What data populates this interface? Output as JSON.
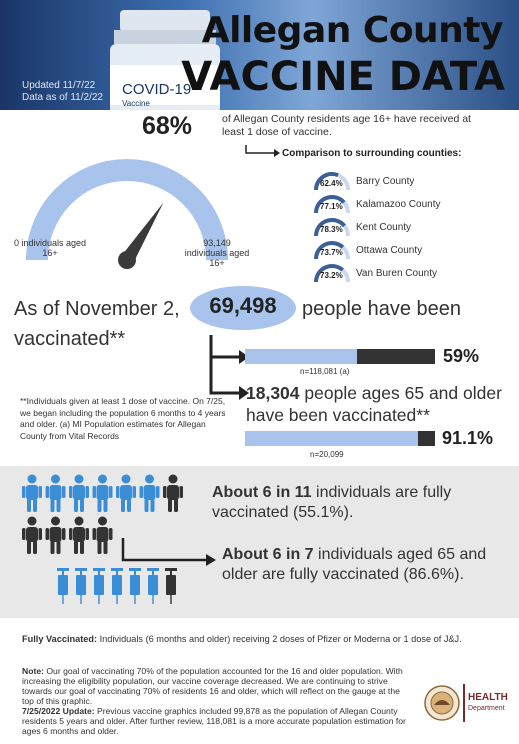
{
  "header": {
    "title_line1": "Allegan County",
    "title_line2": "VACCINE DATA",
    "updated": "Updated 11/7/22",
    "data_as_of": "Data as of 11/2/22",
    "vial_label": "COVID-19",
    "vial_sub": "Vaccine"
  },
  "gauge": {
    "percent": "68%",
    "value": 0.68,
    "description": "of Allegan County residents age 16+ have received at least 1 dose of vaccine.",
    "left_label": "0 individuals aged 16+",
    "right_label": "93,149 individuals aged 16+",
    "colors": {
      "arc": "#a9c4ec",
      "needle": "#333333"
    }
  },
  "comparison": {
    "title": "Comparison to surrounding counties:",
    "counties": [
      {
        "pct": "62.4%",
        "value": 0.624,
        "name": "Barry County"
      },
      {
        "pct": "77.1%",
        "value": 0.771,
        "name": "Kalamazoo County"
      },
      {
        "pct": "78.3%",
        "value": 0.783,
        "name": "Kent County"
      },
      {
        "pct": "73.7%",
        "value": 0.737,
        "name": "Ottawa County"
      },
      {
        "pct": "73.2%",
        "value": 0.732,
        "name": "Van Buren County"
      }
    ]
  },
  "vaccinated": {
    "as_of_prefix": "As of November 2,",
    "count": "69,498",
    "suffix": "people have been",
    "line2": "vaccinated**",
    "bar1": {
      "pct": "59%",
      "value": 0.59,
      "n": "n=118,081 (a)"
    },
    "age65_text": "18,304 people ages 65 and older have been vaccinated**",
    "age65_count": "18,304",
    "age65_rest": " people ages 65 and older have been vaccinated**",
    "bar2": {
      "pct": "91.1%",
      "value": 0.911,
      "n": "n=20,099"
    },
    "footnote": "**Individuals given at least 1 dose of vaccine. On 7/25, we began including the population 6 months to 4 years and older. (a) MI Population estimates for Allegan County from Vital Records"
  },
  "fully": {
    "line1_bold": "About 6 in 11",
    "line1_rest": " individuals are fully vaccinated (55.1%).",
    "line2_bold": "About 6 in 7",
    "line2_rest": " individuals aged 65 and older are fully vaccinated (86.6%).",
    "colors": {
      "blue": "#3b8ed6",
      "dark": "#333333"
    }
  },
  "bottom": {
    "defn_bold": "Fully Vaccinated:",
    "defn_rest": " Individuals (6 months and older) receiving 2 doses of Pfizer or Moderna or 1 dose of J&J.",
    "note_bold": "Note:",
    "note_rest": " Our goal of vaccinating 70% of the population accounted for the 16 and older population. With increasing the eligibility population, our vaccine coverage decreased. We are continuing to strive towards our goal of vaccinating 70% of residents 16 and older, which will reflect on the gauge at the top of this graphic.",
    "update_bold": "7/25/2022 Update:",
    "update_rest": " Previous vaccine graphics included 99,878 as the population of Allegan County residents 5 years and older. After further review, 118,081 is a more accurate population estimation for ages 6 months and older.",
    "dept_line1": "HEALTH",
    "dept_line2": "Department"
  }
}
